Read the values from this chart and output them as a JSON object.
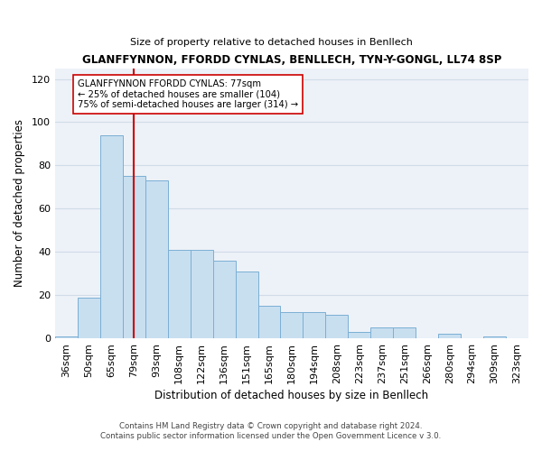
{
  "title": "GLANFFYNNON, FFORDD CYNLAS, BENLLECH, TYN-Y-GONGL, LL74 8SP",
  "subtitle": "Size of property relative to detached houses in Benllech",
  "xlabel": "Distribution of detached houses by size in Benllech",
  "ylabel": "Number of detached properties",
  "bin_labels": [
    "36sqm",
    "50sqm",
    "65sqm",
    "79sqm",
    "93sqm",
    "108sqm",
    "122sqm",
    "136sqm",
    "151sqm",
    "165sqm",
    "180sqm",
    "194sqm",
    "208sqm",
    "223sqm",
    "237sqm",
    "251sqm",
    "266sqm",
    "280sqm",
    "294sqm",
    "309sqm",
    "323sqm"
  ],
  "bar_values": [
    1,
    19,
    94,
    75,
    73,
    41,
    41,
    36,
    31,
    15,
    12,
    12,
    11,
    3,
    5,
    5,
    0,
    2,
    0,
    1,
    0
  ],
  "bar_color": "#c8dff0",
  "bar_edge_color": "#7bafd4",
  "ylim": [
    0,
    125
  ],
  "yticks": [
    0,
    20,
    40,
    60,
    80,
    100,
    120
  ],
  "annotation_line_x_label": "79sqm",
  "annotation_box_line1": "GLANFFYNNON FFORDD CYNLAS: 77sqm",
  "annotation_box_line2": "← 25% of detached houses are smaller (104)",
  "annotation_box_line3": "75% of semi-detached houses are larger (314) →",
  "footer_line1": "Contains HM Land Registry data © Crown copyright and database right 2024.",
  "footer_line2": "Contains public sector information licensed under the Open Government Licence v 3.0.",
  "grid_color": "#d0dce8",
  "annotation_line_color": "#cc0000",
  "bg_color": "#edf2f8"
}
